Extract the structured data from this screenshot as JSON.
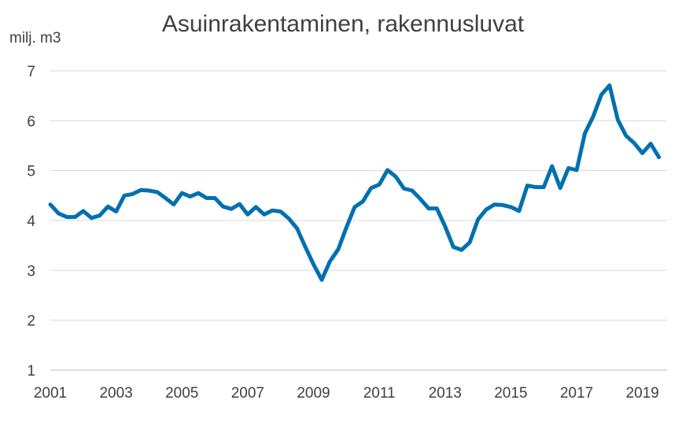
{
  "chart_data": {
    "type": "line",
    "title": "Asuinrakentaminen, rakennusluvat",
    "ylabel": "milj. m3",
    "xlabel": "",
    "ylim": [
      1,
      7
    ],
    "y_ticks": [
      "1",
      "2",
      "3",
      "4",
      "5",
      "6",
      "7"
    ],
    "x_tick_labels": [
      "2001",
      "2003",
      "2005",
      "2007",
      "2009",
      "2011",
      "2013",
      "2015",
      "2017",
      "2019"
    ],
    "grid": "horizontal",
    "line_color": "#0070b0",
    "series": [
      {
        "x": [
          2001.0,
          2001.25,
          2001.5,
          2001.75,
          2002.0,
          2002.25,
          2002.5,
          2002.75,
          2003.0,
          2003.25,
          2003.5,
          2003.75,
          2004.0,
          2004.25,
          2004.5,
          2004.75,
          2005.0,
          2005.25,
          2005.5,
          2005.75,
          2006.0,
          2006.25,
          2006.5,
          2006.75,
          2007.0,
          2007.25,
          2007.5,
          2007.75,
          2008.0,
          2008.25,
          2008.5,
          2008.75,
          2009.0,
          2009.25,
          2009.5,
          2009.75,
          2010.0,
          2010.25,
          2010.5,
          2010.75,
          2011.0,
          2011.25,
          2011.5,
          2011.75,
          2012.0,
          2012.25,
          2012.5,
          2012.75,
          2013.0,
          2013.25,
          2013.5,
          2013.75,
          2014.0,
          2014.25,
          2014.5,
          2014.75,
          2015.0,
          2015.25,
          2015.5,
          2015.75,
          2016.0,
          2016.25,
          2016.5,
          2016.75,
          2017.0,
          2017.25,
          2017.5,
          2017.75,
          2018.0,
          2018.25,
          2018.5,
          2018.75,
          2019.0,
          2019.25,
          2019.5
        ],
        "values": [
          4.32,
          4.14,
          4.07,
          4.07,
          4.19,
          4.05,
          4.1,
          4.28,
          4.18,
          4.5,
          4.53,
          4.61,
          4.6,
          4.57,
          4.45,
          4.32,
          4.55,
          4.48,
          4.55,
          4.45,
          4.45,
          4.28,
          4.23,
          4.33,
          4.12,
          4.27,
          4.12,
          4.2,
          4.18,
          4.04,
          3.84,
          3.47,
          3.12,
          2.81,
          3.18,
          3.42,
          3.86,
          4.27,
          4.38,
          4.65,
          4.72,
          5.01,
          4.88,
          4.64,
          4.6,
          4.43,
          4.24,
          4.24,
          3.88,
          3.47,
          3.41,
          3.56,
          4.02,
          4.22,
          4.32,
          4.31,
          4.27,
          4.19,
          4.7,
          4.67,
          4.67,
          5.09,
          4.65,
          5.05,
          5.01,
          5.75,
          6.08,
          6.52,
          6.71,
          6.02,
          5.7,
          5.55,
          5.35,
          5.54,
          5.27
        ]
      }
    ]
  }
}
